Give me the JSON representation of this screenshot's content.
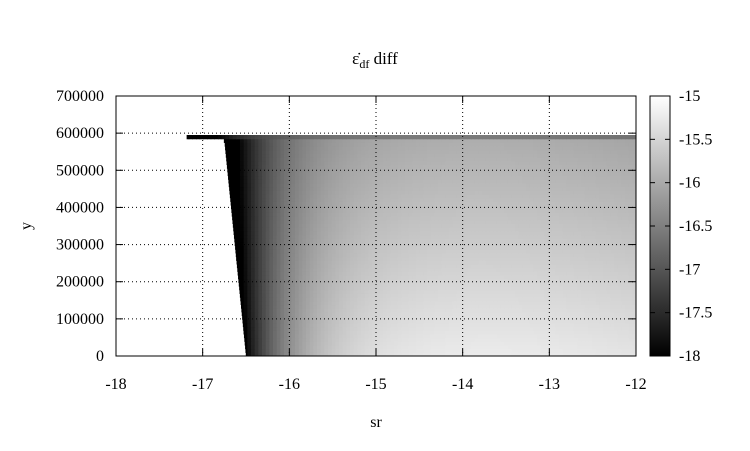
{
  "chart_data": {
    "type": "heatmap",
    "title_main": "ε̇",
    "title_sub": "df",
    "title_rest": " diff",
    "xlabel": "sr",
    "ylabel": "y",
    "xlim": [
      -18,
      -12
    ],
    "ylim": [
      0,
      700000
    ],
    "x_ticks": [
      -18,
      -17,
      -16,
      -15,
      -14,
      -13,
      -12
    ],
    "x_tick_labels": [
      "-18",
      "-17",
      "-16",
      "-15",
      "-14",
      "-13",
      "-12"
    ],
    "y_ticks": [
      0,
      100000,
      200000,
      300000,
      400000,
      500000,
      600000,
      700000
    ],
    "y_tick_labels": [
      "0",
      "100000",
      "200000",
      "300000",
      "400000",
      "500000",
      "600000",
      "700000"
    ],
    "grid": true,
    "colorbar": {
      "range": [
        -18,
        -15
      ],
      "ticks": [
        -18,
        -17.5,
        -17,
        -16.5,
        -16,
        -15.5,
        -15
      ],
      "tick_labels": [
        "-18",
        "-17.5",
        "-17",
        "-16.5",
        "-16",
        "-15.5",
        "-15"
      ],
      "palette": "grayscale"
    },
    "data_top_y": 595000,
    "valid_region_left_edge": [
      {
        "y": 0,
        "sr": -16.5
      },
      {
        "y": 580000,
        "sr": -16.75
      },
      {
        "y": 595000,
        "sr": -17.4
      }
    ]
  }
}
